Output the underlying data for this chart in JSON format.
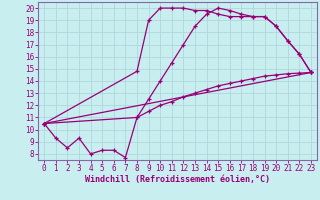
{
  "xlabel": "Windchill (Refroidissement éolien,°C)",
  "bg_color": "#c8eef0",
  "grid_color": "#b0d8dc",
  "line_color": "#990077",
  "spine_color": "#8866aa",
  "xlim": [
    -0.5,
    23.5
  ],
  "ylim": [
    7.5,
    20.5
  ],
  "xticks": [
    0,
    1,
    2,
    3,
    4,
    5,
    6,
    7,
    8,
    9,
    10,
    11,
    12,
    13,
    14,
    15,
    16,
    17,
    18,
    19,
    20,
    21,
    22,
    23
  ],
  "yticks": [
    8,
    9,
    10,
    11,
    12,
    13,
    14,
    15,
    16,
    17,
    18,
    19,
    20
  ],
  "line1_x": [
    0,
    1,
    2,
    3,
    4,
    5,
    6,
    7,
    8,
    9,
    10,
    11,
    12,
    13,
    14,
    15,
    16,
    17,
    18,
    19,
    20,
    21,
    22,
    23
  ],
  "line1_y": [
    10.5,
    9.3,
    8.5,
    9.3,
    8.0,
    8.3,
    8.3,
    7.7,
    11.0,
    12.5,
    14.0,
    15.5,
    17.0,
    18.5,
    19.5,
    20.0,
    19.8,
    19.5,
    19.3,
    19.3,
    18.5,
    17.3,
    16.2,
    14.7
  ],
  "line2_x": [
    0,
    8,
    9,
    10,
    11,
    12,
    13,
    14,
    15,
    16,
    17,
    18,
    19,
    20,
    21,
    22,
    23
  ],
  "line2_y": [
    10.5,
    14.8,
    19.0,
    20.0,
    20.0,
    20.0,
    19.8,
    19.8,
    19.5,
    19.3,
    19.3,
    19.3,
    19.3,
    18.5,
    17.3,
    16.2,
    14.7
  ],
  "line3_x": [
    0,
    23
  ],
  "line3_y": [
    10.5,
    14.7
  ],
  "line4_x": [
    0,
    8,
    9,
    10,
    11,
    12,
    13,
    14,
    15,
    16,
    17,
    18,
    19,
    20,
    21,
    22,
    23
  ],
  "line4_y": [
    10.5,
    11.0,
    11.5,
    12.0,
    12.3,
    12.7,
    13.0,
    13.3,
    13.6,
    13.8,
    14.0,
    14.2,
    14.4,
    14.5,
    14.6,
    14.65,
    14.7
  ],
  "tick_fontsize": 5.5,
  "xlabel_fontsize": 6.0
}
